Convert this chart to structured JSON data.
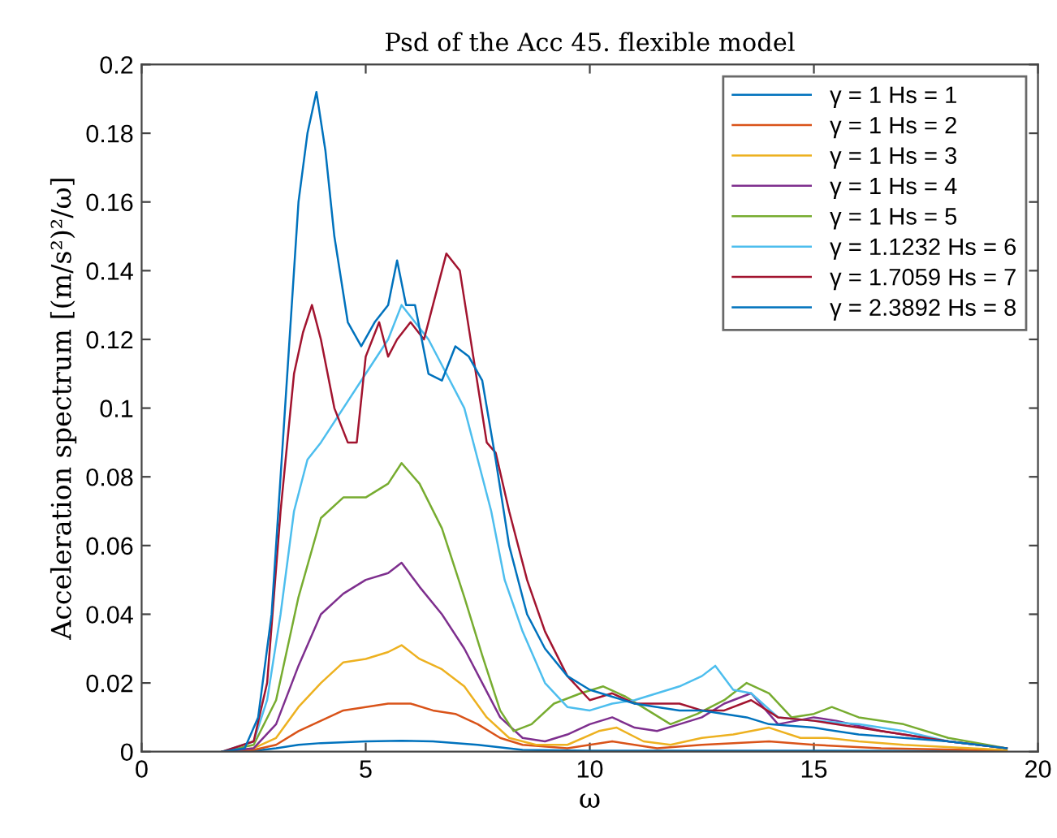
{
  "chart_data": {
    "type": "line",
    "title": "Psd of the Acc 45. flexible model",
    "xlabel": "ω",
    "ylabel": "Acceleration spectrum [(m/s²)²/ω]",
    "xlim": [
      0,
      20
    ],
    "xticks": [
      0,
      5,
      10,
      15,
      20
    ],
    "ylim": [
      0,
      0.2
    ],
    "yticks": [
      0,
      0.02,
      0.04,
      0.06,
      0.08,
      0.1,
      0.12,
      0.14,
      0.16,
      0.18,
      0.2
    ],
    "grid": false,
    "legend": "top right",
    "marker": "none",
    "line_style": "solid",
    "series": [
      {
        "name": "γ = 1 Hs = 1",
        "color": "#0072bd",
        "x": [
          1.8,
          2.5,
          3.0,
          3.5,
          4.0,
          5.0,
          5.8,
          6.5,
          7.5,
          8.5,
          10,
          12,
          15,
          19.3
        ],
        "values": [
          0,
          0.0002,
          0.001,
          0.002,
          0.0025,
          0.003,
          0.0032,
          0.003,
          0.002,
          0.0005,
          0.0003,
          0.0003,
          0.0003,
          0.0001
        ]
      },
      {
        "name": "γ = 1 Hs = 2",
        "color": "#d95319",
        "x": [
          1.8,
          2.5,
          3.0,
          3.5,
          4.0,
          4.5,
          5.0,
          5.5,
          6.0,
          6.5,
          7.0,
          7.5,
          8.0,
          8.5,
          9.5,
          10.5,
          11.5,
          12.5,
          14.0,
          15.0,
          16.5,
          19.3
        ],
        "values": [
          0,
          0.0005,
          0.002,
          0.006,
          0.009,
          0.012,
          0.013,
          0.014,
          0.014,
          0.012,
          0.011,
          0.008,
          0.004,
          0.002,
          0.001,
          0.003,
          0.001,
          0.002,
          0.003,
          0.002,
          0.001,
          0.0003
        ]
      },
      {
        "name": "γ = 1 Hs = 3",
        "color": "#edb120",
        "x": [
          1.8,
          2.5,
          3.0,
          3.5,
          4.0,
          4.5,
          5.0,
          5.5,
          5.8,
          6.2,
          6.7,
          7.2,
          7.7,
          8.2,
          8.8,
          9.5,
          10.2,
          10.6,
          11.2,
          11.8,
          12.5,
          13.2,
          14.0,
          14.7,
          15.3,
          16.0,
          17.0,
          19.3
        ],
        "values": [
          0,
          0.001,
          0.004,
          0.013,
          0.02,
          0.026,
          0.027,
          0.029,
          0.031,
          0.027,
          0.024,
          0.019,
          0.01,
          0.004,
          0.002,
          0.002,
          0.006,
          0.007,
          0.003,
          0.002,
          0.004,
          0.005,
          0.007,
          0.004,
          0.004,
          0.003,
          0.002,
          0.0005
        ]
      },
      {
        "name": "γ = 1 Hs = 4",
        "color": "#7e2f8e",
        "x": [
          1.8,
          2.5,
          3.0,
          3.5,
          4.0,
          4.5,
          5.0,
          5.5,
          5.8,
          6.2,
          6.7,
          7.2,
          7.6,
          8.0,
          8.5,
          9.0,
          9.5,
          10.0,
          10.5,
          11.0,
          11.5,
          12.0,
          12.5,
          13.0,
          13.6,
          14.2,
          15.0,
          15.5,
          16.5,
          18.0,
          19.3
        ],
        "values": [
          0,
          0.001,
          0.008,
          0.025,
          0.04,
          0.046,
          0.05,
          0.052,
          0.055,
          0.048,
          0.04,
          0.03,
          0.02,
          0.01,
          0.004,
          0.003,
          0.005,
          0.008,
          0.01,
          0.007,
          0.006,
          0.008,
          0.01,
          0.014,
          0.017,
          0.008,
          0.01,
          0.009,
          0.006,
          0.003,
          0.001
        ]
      },
      {
        "name": "γ = 1 Hs = 5",
        "color": "#77ac30",
        "x": [
          1.8,
          2.5,
          3.0,
          3.5,
          4.0,
          4.5,
          5.0,
          5.5,
          5.8,
          6.2,
          6.7,
          7.2,
          7.6,
          8.0,
          8.3,
          8.7,
          9.2,
          9.8,
          10.3,
          10.8,
          11.3,
          11.8,
          12.4,
          13.0,
          13.5,
          14.0,
          14.5,
          15.0,
          15.4,
          16.0,
          17.0,
          18.0,
          19.3
        ],
        "values": [
          0,
          0.002,
          0.015,
          0.045,
          0.068,
          0.074,
          0.074,
          0.078,
          0.084,
          0.078,
          0.065,
          0.045,
          0.028,
          0.012,
          0.006,
          0.008,
          0.014,
          0.017,
          0.019,
          0.016,
          0.012,
          0.008,
          0.011,
          0.015,
          0.02,
          0.017,
          0.01,
          0.011,
          0.013,
          0.01,
          0.008,
          0.004,
          0.001
        ]
      },
      {
        "name": "γ = 1.1232 Hs = 6",
        "color": "#4dbeee",
        "x": [
          1.8,
          2.5,
          2.8,
          3.1,
          3.4,
          3.7,
          4.0,
          4.5,
          5.0,
          5.5,
          5.8,
          6.1,
          6.4,
          6.8,
          7.2,
          7.5,
          7.8,
          8.1,
          8.5,
          9.0,
          9.5,
          10.0,
          10.5,
          11.0,
          11.5,
          12.0,
          12.5,
          12.8,
          13.2,
          13.6,
          14.2,
          15.0,
          16.0,
          17.0,
          18.0,
          19.3
        ],
        "values": [
          0,
          0.003,
          0.015,
          0.04,
          0.07,
          0.085,
          0.09,
          0.1,
          0.11,
          0.12,
          0.13,
          0.125,
          0.12,
          0.11,
          0.1,
          0.085,
          0.07,
          0.05,
          0.035,
          0.02,
          0.013,
          0.012,
          0.014,
          0.015,
          0.017,
          0.019,
          0.022,
          0.025,
          0.018,
          0.017,
          0.01,
          0.009,
          0.008,
          0.006,
          0.003,
          0.001
        ]
      },
      {
        "name": "γ = 1.7059 Hs = 7",
        "color": "#a2142f",
        "x": [
          1.8,
          2.5,
          2.8,
          3.1,
          3.4,
          3.6,
          3.8,
          4.0,
          4.3,
          4.6,
          4.8,
          5.0,
          5.3,
          5.5,
          5.7,
          6.0,
          6.3,
          6.5,
          6.8,
          7.1,
          7.4,
          7.7,
          7.9,
          8.2,
          8.6,
          9.0,
          9.5,
          10.0,
          10.5,
          11.0,
          11.5,
          12.0,
          12.5,
          13.0,
          13.6,
          14.2,
          15.0,
          16.0,
          17.0,
          18.0,
          19.3
        ],
        "values": [
          0,
          0.003,
          0.02,
          0.07,
          0.11,
          0.122,
          0.13,
          0.12,
          0.1,
          0.09,
          0.09,
          0.115,
          0.125,
          0.115,
          0.12,
          0.125,
          0.12,
          0.13,
          0.145,
          0.14,
          0.115,
          0.09,
          0.087,
          0.07,
          0.05,
          0.035,
          0.022,
          0.015,
          0.017,
          0.014,
          0.014,
          0.014,
          0.012,
          0.012,
          0.015,
          0.01,
          0.009,
          0.007,
          0.005,
          0.003,
          0.001
        ]
      },
      {
        "name": "γ = 2.3892 Hs = 8",
        "color": "#0072bd",
        "x": [
          1.8,
          2.3,
          2.6,
          2.9,
          3.2,
          3.5,
          3.7,
          3.9,
          4.1,
          4.3,
          4.6,
          4.9,
          5.2,
          5.5,
          5.7,
          5.9,
          6.1,
          6.4,
          6.7,
          7.0,
          7.3,
          7.6,
          7.9,
          8.2,
          8.6,
          9.0,
          9.5,
          10.0,
          10.5,
          11.0,
          11.5,
          12.0,
          12.5,
          13.0,
          13.5,
          14.0,
          15.0,
          16.0,
          17.0,
          18.0,
          19.3
        ],
        "values": [
          0,
          0.001,
          0.01,
          0.04,
          0.1,
          0.16,
          0.18,
          0.192,
          0.175,
          0.15,
          0.125,
          0.118,
          0.125,
          0.13,
          0.143,
          0.13,
          0.13,
          0.11,
          0.108,
          0.118,
          0.115,
          0.108,
          0.085,
          0.06,
          0.04,
          0.03,
          0.022,
          0.018,
          0.016,
          0.014,
          0.013,
          0.012,
          0.012,
          0.011,
          0.01,
          0.008,
          0.007,
          0.005,
          0.004,
          0.003,
          0.001
        ]
      }
    ]
  }
}
